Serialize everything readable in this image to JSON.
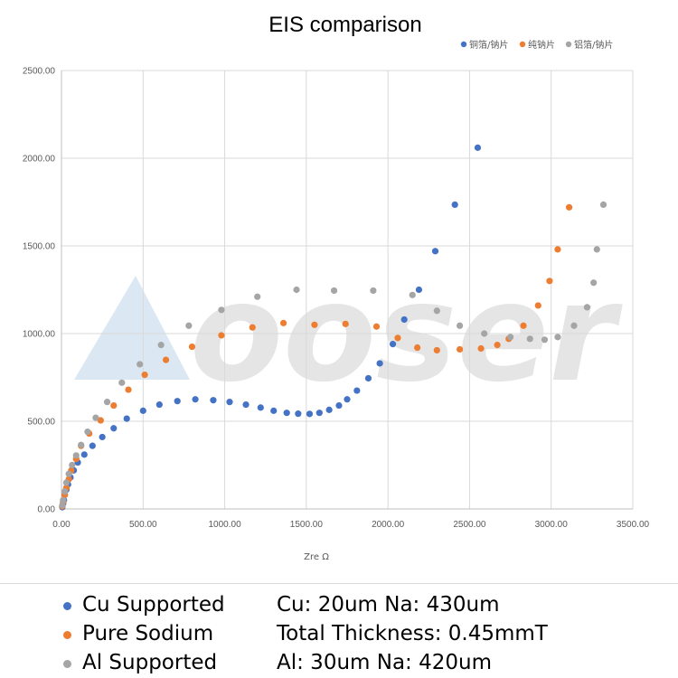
{
  "chart_data": {
    "type": "scatter",
    "title": "EIS comparison",
    "xlabel": "Zre Ω",
    "ylabel": "",
    "xlim": [
      0,
      3500
    ],
    "ylim": [
      0,
      2500
    ],
    "x_ticks": [
      "0.00",
      "500.00",
      "1000.00",
      "1500.00",
      "2000.00",
      "2500.00",
      "3000.00",
      "3500.00"
    ],
    "y_ticks": [
      "0.00",
      "500.00",
      "1000.00",
      "1500.00",
      "2000.00",
      "2500.00"
    ],
    "grid": true,
    "legend_position": "top-right",
    "series": [
      {
        "name": "铜箔/钠片",
        "color": "#4472c4",
        "points": [
          [
            5,
            10
          ],
          [
            10,
            30
          ],
          [
            15,
            50
          ],
          [
            20,
            80
          ],
          [
            30,
            110
          ],
          [
            40,
            140
          ],
          [
            55,
            180
          ],
          [
            75,
            220
          ],
          [
            100,
            265
          ],
          [
            140,
            310
          ],
          [
            190,
            360
          ],
          [
            250,
            410
          ],
          [
            320,
            460
          ],
          [
            400,
            515
          ],
          [
            500,
            560
          ],
          [
            600,
            595
          ],
          [
            710,
            615
          ],
          [
            820,
            625
          ],
          [
            930,
            620
          ],
          [
            1030,
            610
          ],
          [
            1130,
            595
          ],
          [
            1220,
            578
          ],
          [
            1300,
            560
          ],
          [
            1380,
            548
          ],
          [
            1450,
            543
          ],
          [
            1520,
            542
          ],
          [
            1580,
            548
          ],
          [
            1640,
            565
          ],
          [
            1700,
            590
          ],
          [
            1750,
            625
          ],
          [
            1810,
            675
          ],
          [
            1880,
            745
          ],
          [
            1950,
            830
          ],
          [
            2030,
            940
          ],
          [
            2100,
            1080
          ],
          [
            2190,
            1250
          ],
          [
            2290,
            1470
          ],
          [
            2410,
            1735
          ],
          [
            2550,
            2060
          ]
        ]
      },
      {
        "name": "纯钠片",
        "color": "#ed7d31",
        "points": [
          [
            5,
            15
          ],
          [
            10,
            40
          ],
          [
            20,
            80
          ],
          [
            30,
            120
          ],
          [
            45,
            170
          ],
          [
            60,
            220
          ],
          [
            90,
            285
          ],
          [
            120,
            360
          ],
          [
            170,
            430
          ],
          [
            240,
            505
          ],
          [
            320,
            590
          ],
          [
            410,
            680
          ],
          [
            510,
            765
          ],
          [
            640,
            850
          ],
          [
            800,
            925
          ],
          [
            980,
            990
          ],
          [
            1170,
            1035
          ],
          [
            1360,
            1060
          ],
          [
            1550,
            1050
          ],
          [
            1740,
            1055
          ],
          [
            1930,
            1040
          ],
          [
            2060,
            975
          ],
          [
            2180,
            920
          ],
          [
            2300,
            905
          ],
          [
            2440,
            910
          ],
          [
            2570,
            915
          ],
          [
            2670,
            935
          ],
          [
            2740,
            970
          ],
          [
            2830,
            1045
          ],
          [
            2920,
            1160
          ],
          [
            2990,
            1300
          ],
          [
            3040,
            1480
          ],
          [
            3110,
            1720
          ]
        ]
      },
      {
        "name": "铝箔/钠片",
        "color": "#a5a5a5",
        "points": [
          [
            5,
            20
          ],
          [
            10,
            50
          ],
          [
            20,
            100
          ],
          [
            30,
            150
          ],
          [
            45,
            200
          ],
          [
            65,
            250
          ],
          [
            90,
            305
          ],
          [
            120,
            365
          ],
          [
            160,
            440
          ],
          [
            210,
            520
          ],
          [
            280,
            610
          ],
          [
            370,
            720
          ],
          [
            480,
            825
          ],
          [
            610,
            935
          ],
          [
            780,
            1045
          ],
          [
            980,
            1135
          ],
          [
            1200,
            1210
          ],
          [
            1440,
            1250
          ],
          [
            1670,
            1245
          ],
          [
            1910,
            1245
          ],
          [
            2150,
            1220
          ],
          [
            2300,
            1130
          ],
          [
            2440,
            1045
          ],
          [
            2590,
            1000
          ],
          [
            2750,
            980
          ],
          [
            2870,
            970
          ],
          [
            2960,
            965
          ],
          [
            3040,
            980
          ],
          [
            3140,
            1045
          ],
          [
            3220,
            1150
          ],
          [
            3260,
            1290
          ],
          [
            3280,
            1480
          ],
          [
            3320,
            1735
          ]
        ]
      }
    ]
  },
  "notes": [
    {
      "name": "Cu Supported",
      "color": "#4472c4",
      "spec": "Cu: 20um Na: 430um"
    },
    {
      "name": "Pure Sodium",
      "color": "#ed7d31",
      "spec": "Total Thickness: 0.45mmT"
    },
    {
      "name": "Al Supported",
      "color": "#a5a5a5",
      "spec": "Al: 30um Na: 420um"
    }
  ],
  "watermark": {
    "text": "ooser",
    "icon": "triangle-logo-icon"
  }
}
